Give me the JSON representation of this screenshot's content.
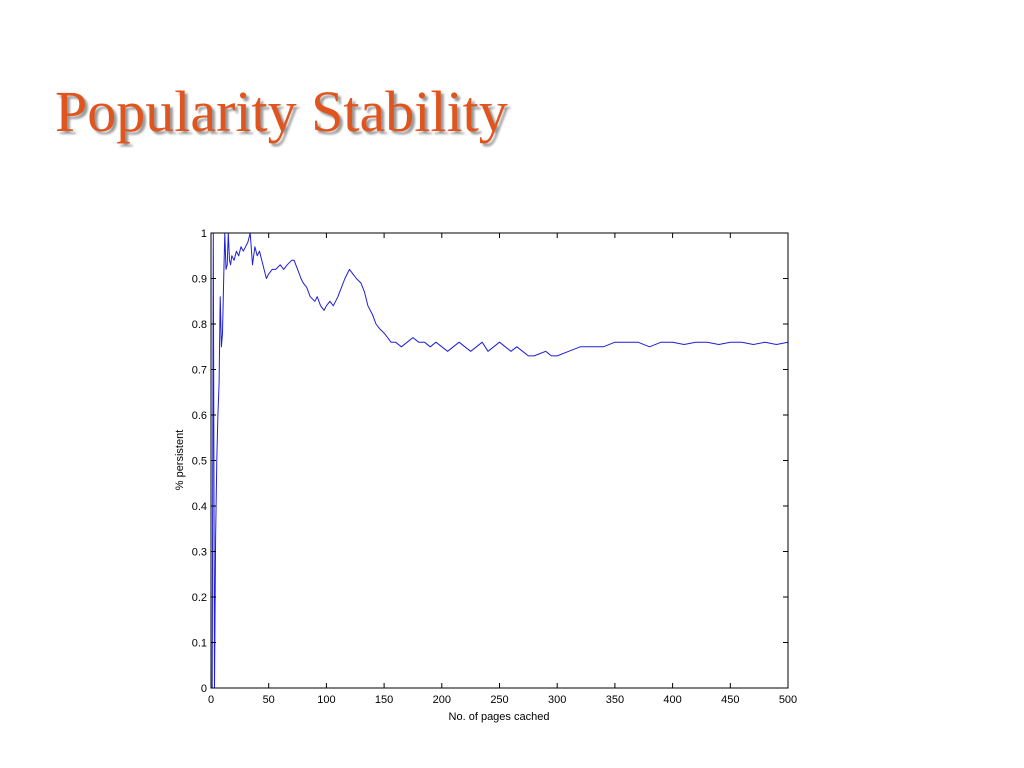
{
  "slide": {
    "title": "Popularity Stability"
  },
  "chart_data": {
    "type": "line",
    "title": "",
    "xlabel": "No. of pages cached",
    "ylabel": "% persistent",
    "xlim": [
      0,
      500
    ],
    "ylim": [
      0,
      1
    ],
    "xticks": [
      0,
      50,
      100,
      150,
      200,
      250,
      300,
      350,
      400,
      450,
      500
    ],
    "yticks": [
      0,
      0.1,
      0.2,
      0.3,
      0.4,
      0.5,
      0.6,
      0.7,
      0.8,
      0.9,
      1
    ],
    "ytick_labels": [
      "0",
      "0.1",
      "0.2",
      "0.3",
      "0.4",
      "0.5",
      "0.6",
      "0.7",
      "0.8",
      "0.9",
      "1"
    ],
    "grid": false,
    "colors": {
      "line": "#1f1fd6",
      "axes": "#000000"
    },
    "series": [
      {
        "x": [
          1,
          2,
          3,
          4,
          5,
          6,
          7,
          8,
          9,
          10,
          11,
          12,
          13,
          14,
          15,
          16,
          17,
          18,
          20,
          22,
          24,
          26,
          28,
          30,
          32,
          34,
          36,
          38,
          40,
          42,
          45,
          48,
          50,
          53,
          56,
          60,
          63,
          66,
          70,
          72,
          75,
          78,
          80,
          83,
          86,
          90,
          92,
          95,
          98,
          100,
          103,
          106,
          110,
          113,
          116,
          120,
          123,
          126,
          130,
          133,
          136,
          140,
          143,
          146,
          150,
          153,
          156,
          160,
          165,
          170,
          175,
          180,
          185,
          190,
          195,
          200,
          205,
          210,
          215,
          220,
          225,
          230,
          235,
          240,
          245,
          250,
          255,
          260,
          265,
          270,
          275,
          280,
          285,
          290,
          295,
          300,
          310,
          320,
          330,
          340,
          350,
          360,
          370,
          380,
          390,
          400,
          410,
          420,
          430,
          440,
          450,
          460,
          470,
          480,
          490,
          500
        ],
        "y": [
          0,
          1,
          0,
          0.33,
          0.5,
          0.6,
          0.67,
          0.86,
          0.75,
          0.78,
          0.9,
          1,
          0.92,
          0.93,
          1,
          0.94,
          0.93,
          0.95,
          0.94,
          0.96,
          0.95,
          0.97,
          0.96,
          0.97,
          0.98,
          1,
          0.93,
          0.97,
          0.95,
          0.96,
          0.93,
          0.9,
          0.91,
          0.92,
          0.92,
          0.93,
          0.92,
          0.93,
          0.94,
          0.94,
          0.92,
          0.9,
          0.89,
          0.88,
          0.86,
          0.85,
          0.86,
          0.84,
          0.83,
          0.84,
          0.85,
          0.84,
          0.86,
          0.88,
          0.9,
          0.92,
          0.91,
          0.9,
          0.89,
          0.87,
          0.84,
          0.82,
          0.8,
          0.79,
          0.78,
          0.77,
          0.76,
          0.76,
          0.75,
          0.76,
          0.77,
          0.76,
          0.76,
          0.75,
          0.76,
          0.75,
          0.74,
          0.75,
          0.76,
          0.75,
          0.74,
          0.75,
          0.76,
          0.74,
          0.75,
          0.76,
          0.75,
          0.74,
          0.75,
          0.74,
          0.73,
          0.73,
          0.735,
          0.74,
          0.73,
          0.73,
          0.74,
          0.75,
          0.75,
          0.75,
          0.76,
          0.76,
          0.76,
          0.75,
          0.76,
          0.76,
          0.755,
          0.76,
          0.76,
          0.755,
          0.76,
          0.76,
          0.755,
          0.76,
          0.755,
          0.76
        ]
      }
    ]
  }
}
